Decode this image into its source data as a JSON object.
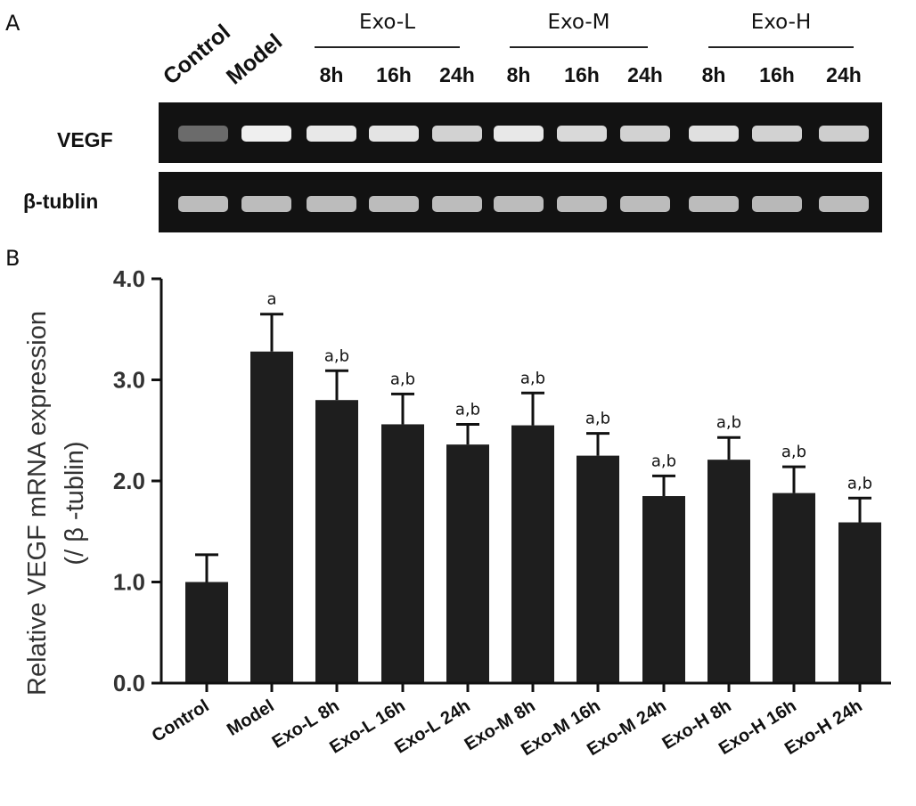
{
  "panels": {
    "a": "A",
    "b": "B"
  },
  "blot": {
    "lanes": [
      {
        "label": "Control",
        "kind": "rotated"
      },
      {
        "label": "Model",
        "kind": "rotated"
      },
      {
        "label": "8h",
        "group": 0
      },
      {
        "label": "16h",
        "group": 0
      },
      {
        "label": "24h",
        "group": 0
      },
      {
        "label": "8h",
        "group": 1
      },
      {
        "label": "16h",
        "group": 1
      },
      {
        "label": "24h",
        "group": 1
      },
      {
        "label": "8h",
        "group": 2
      },
      {
        "label": "16h",
        "group": 2
      },
      {
        "label": "24h",
        "group": 2
      }
    ],
    "groups": [
      "Exo-L",
      "Exo-M",
      "Exo-H"
    ],
    "rows": [
      {
        "label": "VEGF",
        "intensities": [
          0.35,
          0.95,
          0.92,
          0.9,
          0.82,
          0.92,
          0.85,
          0.82,
          0.88,
          0.82,
          0.8
        ]
      },
      {
        "label": "β-tublin",
        "intensities": [
          0.72,
          0.72,
          0.72,
          0.72,
          0.72,
          0.72,
          0.72,
          0.72,
          0.72,
          0.7,
          0.72
        ]
      }
    ],
    "background_color": "#121212",
    "band_color": "#f2f2f2"
  },
  "chart_data": {
    "type": "bar",
    "categories": [
      "Control",
      "Model",
      "Exo-L 8h",
      "Exo-L 16h",
      "Exo-L 24h",
      "Exo-M 8h",
      "Exo-M 16h",
      "Exo-M 24h",
      "Exo-H 8h",
      "Exo-H 16h",
      "Exo-H 24h"
    ],
    "values": [
      1.0,
      3.28,
      2.8,
      2.56,
      2.36,
      2.55,
      2.25,
      1.85,
      2.21,
      1.88,
      1.59
    ],
    "errors": [
      0.27,
      0.37,
      0.29,
      0.3,
      0.2,
      0.32,
      0.22,
      0.2,
      0.22,
      0.26,
      0.24
    ],
    "annotations": [
      "",
      "a",
      "a,b",
      "a,b",
      "a,b",
      "a,b",
      "a,b",
      "a,b",
      "a,b",
      "a,b",
      "a,b"
    ],
    "ylabel_line1": "Relative VEGF mRNA expression",
    "ylabel_line2": "(/ β -tublin)",
    "ylim": [
      0,
      4
    ],
    "yticks": [
      0.0,
      1.0,
      2.0,
      3.0,
      4.0
    ],
    "ytick_labels": [
      "0.0",
      "1.0",
      "2.0",
      "3.0",
      "4.0"
    ],
    "bar_color": "#1e1e1e",
    "grid": false
  }
}
